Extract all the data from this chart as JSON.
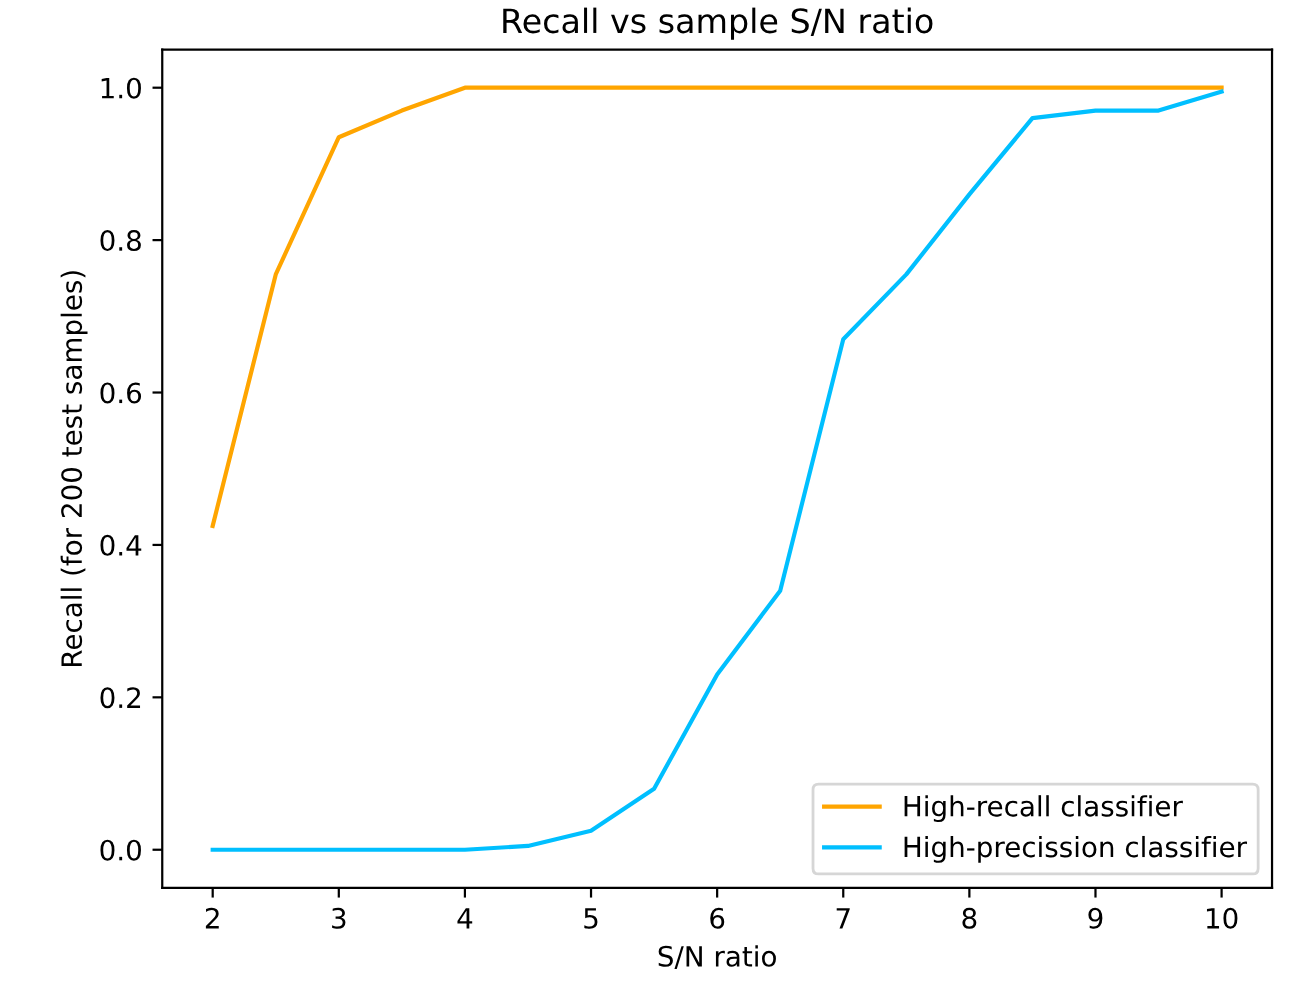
{
  "chart_data": {
    "type": "line",
    "title": "Recall vs sample S/N ratio",
    "xlabel": "S/N ratio",
    "ylabel": "Recall (for 200 test samples)",
    "x": [
      2,
      2.5,
      3,
      3.5,
      4,
      4.5,
      5,
      5.5,
      6,
      6.5,
      7,
      7.5,
      8,
      8.5,
      9,
      9.5,
      10
    ],
    "series": [
      {
        "name": "High-recall classifier",
        "color": "#ffa500",
        "values": [
          0.425,
          0.755,
          0.935,
          0.97,
          1.0,
          1.0,
          1.0,
          1.0,
          1.0,
          1.0,
          1.0,
          1.0,
          1.0,
          1.0,
          1.0,
          1.0,
          1.0
        ]
      },
      {
        "name": "High-precission classifier",
        "color": "#00bfff",
        "values": [
          0,
          0,
          0,
          0,
          0,
          0.005,
          0.025,
          0.08,
          0.23,
          0.34,
          0.67,
          0.755,
          0.86,
          0.96,
          0.97,
          0.97,
          0.995
        ]
      }
    ],
    "xlim": [
      1.6,
      10.4
    ],
    "xticks": [
      2,
      3,
      4,
      5,
      6,
      7,
      8,
      9,
      10
    ],
    "ylim": [
      -0.05,
      1.05
    ],
    "yticks": [
      {
        "value": 0,
        "label": "0.0"
      },
      {
        "value": 0.2,
        "label": "0.2"
      },
      {
        "value": 0.4,
        "label": "0.4"
      },
      {
        "value": 0.6,
        "label": "0.6"
      },
      {
        "value": 0.8,
        "label": "0.8"
      },
      {
        "value": 1.0,
        "label": "1.0"
      }
    ],
    "grid": false,
    "legend": "lower right"
  }
}
